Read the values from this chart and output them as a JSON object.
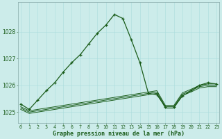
{
  "title": "Graphe pression niveau de la mer (hPa)",
  "background_color": "#ccecea",
  "grid_color": "#99cccc",
  "line_color": "#1a5c1a",
  "xlim": [
    0,
    23
  ],
  "ylim": [
    1024.6,
    1029.1
  ],
  "yticks": [
    1025,
    1026,
    1027,
    1028
  ],
  "xticks": [
    0,
    1,
    2,
    3,
    4,
    5,
    6,
    7,
    8,
    9,
    10,
    11,
    12,
    13,
    14,
    15,
    16,
    17,
    18,
    19,
    20,
    21,
    22,
    23
  ],
  "main_line": [
    1025.3,
    1025.1,
    1025.45,
    1025.8,
    1026.1,
    1026.5,
    1026.85,
    1027.15,
    1027.55,
    1027.95,
    1028.25,
    1028.65,
    1028.5,
    1027.7,
    1026.85,
    1025.7,
    1025.65,
    1025.2,
    1025.2,
    1025.6,
    1025.8,
    1026.0,
    1026.1,
    1026.05
  ],
  "flat1": [
    1025.2,
    1025.05,
    1025.1,
    1025.15,
    1025.2,
    1025.25,
    1025.3,
    1025.35,
    1025.4,
    1025.45,
    1025.5,
    1025.55,
    1025.6,
    1025.65,
    1025.7,
    1025.75,
    1025.8,
    1025.25,
    1025.25,
    1025.72,
    1025.85,
    1026.0,
    1026.05,
    1026.05
  ],
  "flat2": [
    1025.15,
    1025.0,
    1025.05,
    1025.1,
    1025.15,
    1025.2,
    1025.25,
    1025.3,
    1025.35,
    1025.4,
    1025.45,
    1025.5,
    1025.55,
    1025.6,
    1025.65,
    1025.7,
    1025.75,
    1025.2,
    1025.2,
    1025.67,
    1025.8,
    1025.95,
    1026.0,
    1026.0
  ],
  "flat3": [
    1025.1,
    1024.95,
    1025.0,
    1025.05,
    1025.1,
    1025.15,
    1025.2,
    1025.25,
    1025.3,
    1025.35,
    1025.4,
    1025.45,
    1025.5,
    1025.55,
    1025.6,
    1025.65,
    1025.7,
    1025.15,
    1025.15,
    1025.62,
    1025.75,
    1025.9,
    1025.95,
    1025.95
  ]
}
